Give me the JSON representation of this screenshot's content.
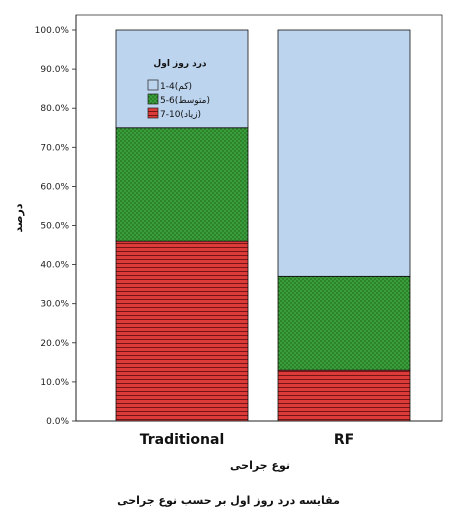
{
  "chart_data": {
    "type": "bar",
    "stacked": true,
    "percent": true,
    "categories": [
      "Traditional",
      "RF"
    ],
    "series": [
      {
        "name": "7-10(زیاد)",
        "values": [
          46.0,
          13.0
        ],
        "color": "#dd3a3a",
        "pattern": "horizontal-lines"
      },
      {
        "name": "5-6(متوسط)",
        "values": [
          29.0,
          24.0
        ],
        "color": "#3a9e3a",
        "pattern": "dots"
      },
      {
        "name": "1-4(کم)",
        "values": [
          25.0,
          63.0
        ],
        "color": "#bcd4ee",
        "pattern": "none"
      }
    ],
    "legend_title": "درد روز اول",
    "legend_position": "top-left-inside",
    "xlabel": "نوع جراحی",
    "ylabel": "درصد",
    "ylim": [
      0,
      100
    ],
    "yticks": [
      "0.0%",
      "10.0%",
      "20.0%",
      "30.0%",
      "40.0%",
      "50.0%",
      "60.0%",
      "70.0%",
      "80.0%",
      "90.0%",
      "100.0%"
    ],
    "grid": false
  },
  "caption": "مقایسه درد روز اول بر حسب نوع جراحی"
}
